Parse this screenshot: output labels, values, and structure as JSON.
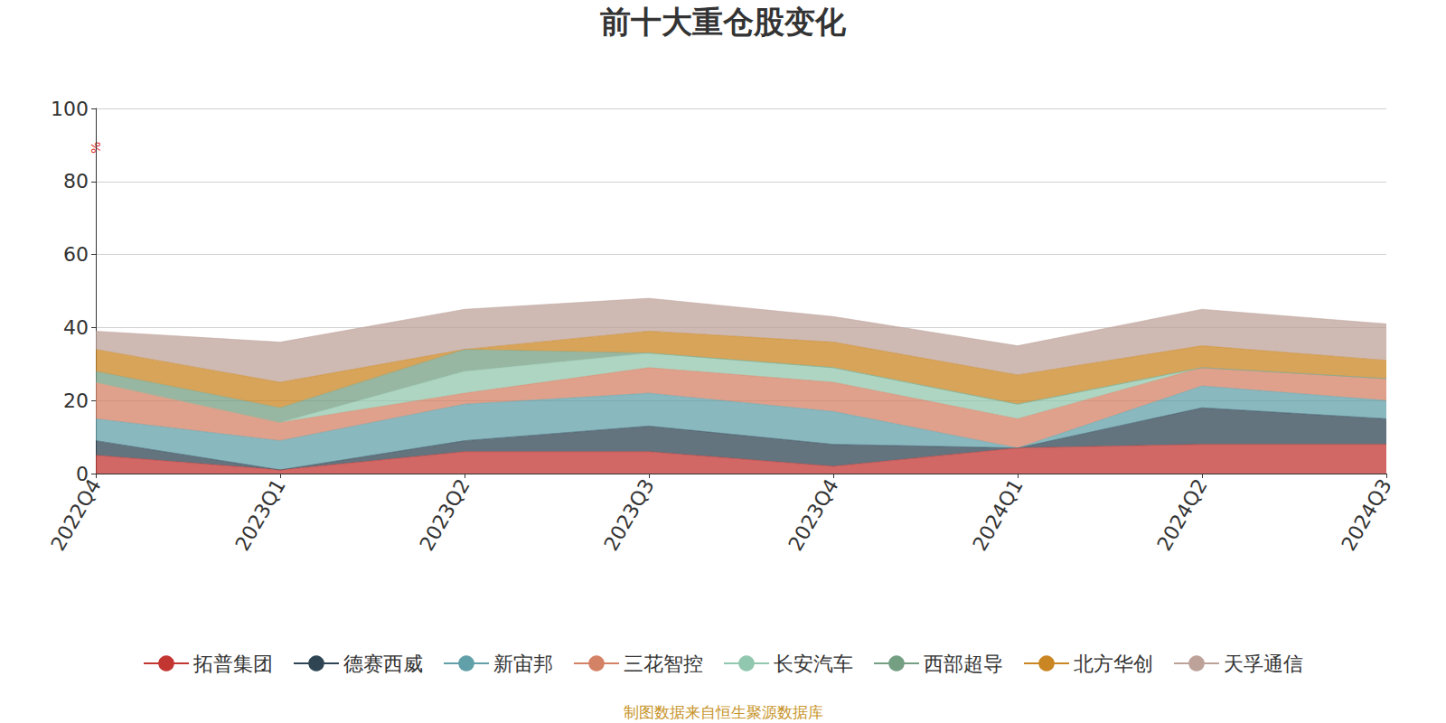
{
  "chart_data": {
    "type": "area",
    "title": "前十大重仓股变化",
    "y_label": "%",
    "source": "制图数据来自恒生聚源数据库",
    "categories": [
      "2022Q4",
      "2023Q1",
      "2023Q2",
      "2023Q3",
      "2023Q4",
      "2024Q1",
      "2024Q2",
      "2024Q3"
    ],
    "series": [
      {
        "name": "拓普集团",
        "color": "#c23531",
        "values": [
          5,
          1,
          6,
          6,
          2,
          7,
          8,
          8
        ]
      },
      {
        "name": "德赛西威",
        "color": "#2f4554",
        "values": [
          4,
          0,
          3,
          7,
          6,
          0,
          10,
          7
        ]
      },
      {
        "name": "新宙邦",
        "color": "#61a0a8",
        "values": [
          6,
          8,
          10,
          9,
          9,
          0,
          6,
          5
        ]
      },
      {
        "name": "三花智控",
        "color": "#d48265",
        "values": [
          10,
          5,
          3,
          7,
          8,
          8,
          5,
          6
        ]
      },
      {
        "name": "长安汽车",
        "color": "#91c7ae",
        "values": [
          0,
          0,
          6,
          4,
          4,
          4,
          0,
          0
        ]
      },
      {
        "name": "西部超导",
        "color": "#749f83",
        "values": [
          3,
          4,
          6,
          0,
          0,
          0,
          0,
          0
        ]
      },
      {
        "name": "北方华创",
        "color": "#ca8622",
        "values": [
          6,
          7,
          0,
          6,
          7,
          8,
          6,
          5
        ]
      },
      {
        "name": "天孚通信",
        "color": "#bda29a",
        "values": [
          5,
          11,
          11,
          9,
          7,
          8,
          10,
          10
        ]
      }
    ],
    "ylim": [
      0,
      100
    ],
    "yticks": [
      0,
      20,
      40,
      60,
      80,
      100
    ],
    "grid": true,
    "stacked": true,
    "legend": "bottom"
  }
}
